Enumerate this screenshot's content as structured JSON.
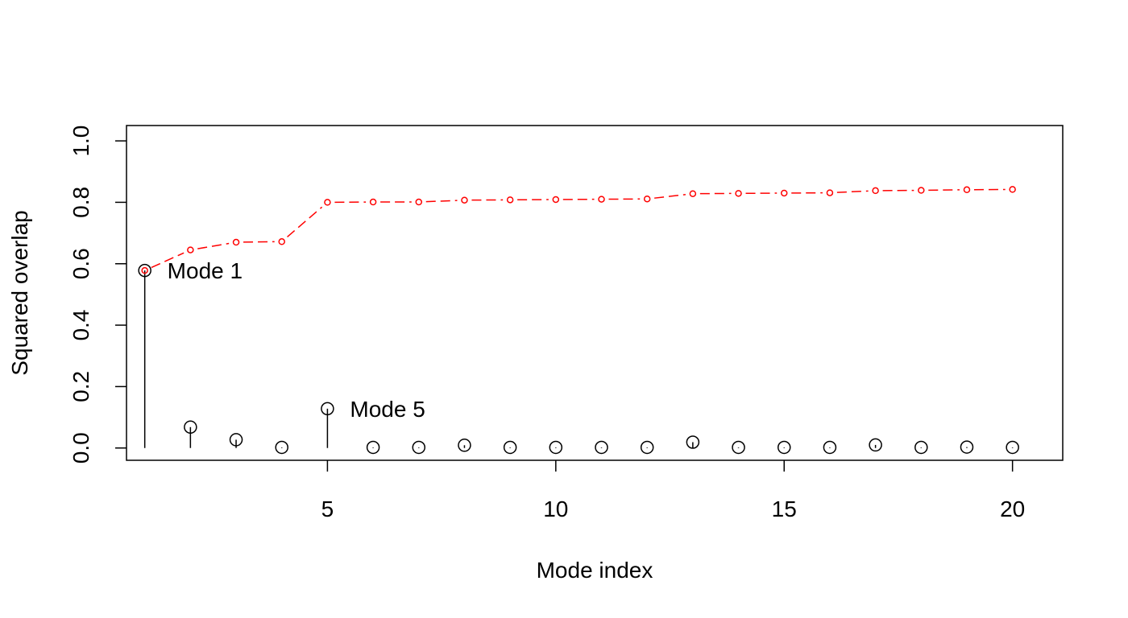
{
  "chart_data": {
    "type": "scatter",
    "xlabel": "Mode index",
    "ylabel": "Squared overlap",
    "xlim": [
      0.6,
      21.1
    ],
    "ylim": [
      -0.04,
      1.05
    ],
    "x_ticks": [
      5,
      10,
      15,
      20
    ],
    "x_tick_labels": [
      "5",
      "10",
      "15",
      "20"
    ],
    "y_ticks": [
      0.0,
      0.2,
      0.4,
      0.6,
      0.8,
      1.0
    ],
    "y_tick_labels": [
      "0.0",
      "0.2",
      "0.4",
      "0.6",
      "0.8",
      "1.0"
    ],
    "grid": false,
    "legend": "none",
    "series": [
      {
        "style": "stems-with-open-circles",
        "color": "#000000",
        "x": [
          1,
          2,
          3,
          4,
          5,
          6,
          7,
          8,
          9,
          10,
          11,
          12,
          13,
          14,
          15,
          16,
          17,
          18,
          19,
          20
        ],
        "values": [
          0.578,
          0.068,
          0.027,
          0.002,
          0.128,
          0.002,
          0.002,
          0.009,
          0.002,
          0.002,
          0.002,
          0.002,
          0.019,
          0.002,
          0.002,
          0.002,
          0.01,
          0.002,
          0.003,
          0.002
        ]
      },
      {
        "style": "dashed-line-with-small-circles",
        "color": "#ff0000",
        "x": [
          1,
          2,
          3,
          4,
          5,
          6,
          7,
          8,
          9,
          10,
          11,
          12,
          13,
          14,
          15,
          16,
          17,
          18,
          19,
          20
        ],
        "values": [
          0.578,
          0.645,
          0.67,
          0.672,
          0.8,
          0.801,
          0.801,
          0.807,
          0.808,
          0.809,
          0.81,
          0.811,
          0.828,
          0.829,
          0.83,
          0.831,
          0.838,
          0.839,
          0.841,
          0.842
        ]
      }
    ],
    "annotations": [
      {
        "text": "Mode 1",
        "x": 1,
        "y": 0.578
      },
      {
        "text": "Mode 5",
        "x": 5,
        "y": 0.128
      }
    ]
  }
}
